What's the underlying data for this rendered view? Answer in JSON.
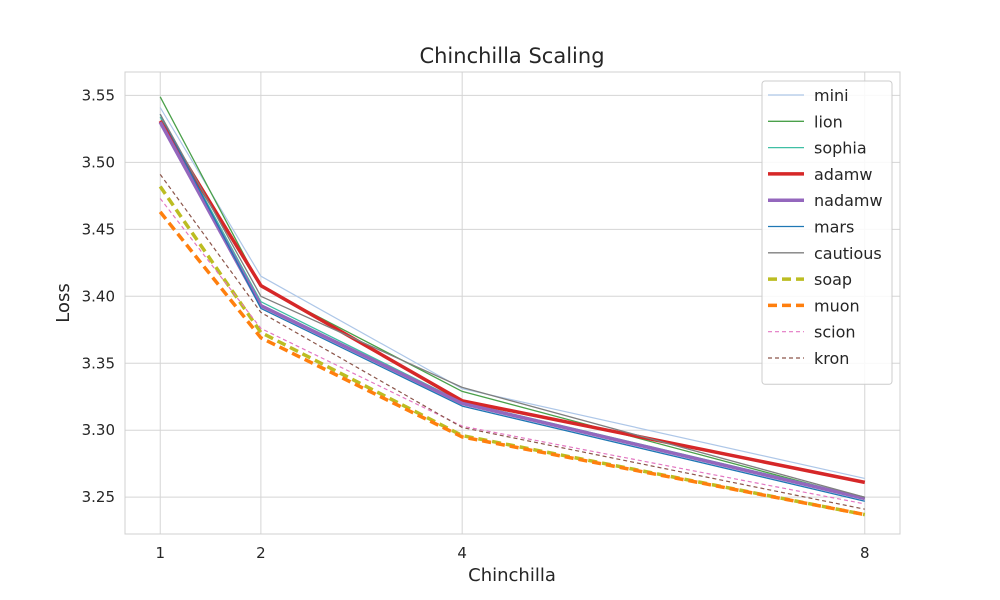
{
  "chart_data": {
    "type": "line",
    "title": "Chinchilla Scaling",
    "xlabel": "Chinchilla",
    "ylabel": "Loss",
    "x": [
      1,
      2,
      4,
      8
    ],
    "xticks": [
      "1",
      "2",
      "4",
      "8"
    ],
    "xlim": [
      0.65,
      8.35
    ],
    "ylim": [
      3.2225,
      3.5675
    ],
    "yticks": [
      "3.25",
      "3.30",
      "3.35",
      "3.40",
      "3.45",
      "3.50",
      "3.55"
    ],
    "grid": true,
    "legend_position": "top-right",
    "series": [
      {
        "name": "mini",
        "values": [
          3.541,
          3.415,
          3.331,
          3.264
        ],
        "color": "#aec7e8",
        "width": 1.2,
        "dash": ""
      },
      {
        "name": "lion",
        "values": [
          3.549,
          3.407,
          3.329,
          3.249
        ],
        "color": "#4aa04a",
        "width": 1.3,
        "dash": ""
      },
      {
        "name": "sophia",
        "values": [
          3.534,
          3.396,
          3.321,
          3.25
        ],
        "color": "#3fbfa4",
        "width": 1.3,
        "dash": ""
      },
      {
        "name": "adamw",
        "values": [
          3.531,
          3.408,
          3.322,
          3.261
        ],
        "color": "#d62728",
        "width": 3.5,
        "dash": ""
      },
      {
        "name": "nadamw",
        "values": [
          3.53,
          3.393,
          3.32,
          3.249
        ],
        "color": "#9467bd",
        "width": 3.5,
        "dash": ""
      },
      {
        "name": "mars",
        "values": [
          3.536,
          3.391,
          3.318,
          3.247
        ],
        "color": "#1f77b4",
        "width": 1.3,
        "dash": ""
      },
      {
        "name": "cautious",
        "values": [
          3.536,
          3.4,
          3.332,
          3.25
        ],
        "color": "#7f7f7f",
        "width": 1.3,
        "dash": ""
      },
      {
        "name": "soap",
        "values": [
          3.482,
          3.373,
          3.296,
          3.237
        ],
        "color": "#bcbd22",
        "width": 3.5,
        "dash": "9,5"
      },
      {
        "name": "muon",
        "values": [
          3.463,
          3.369,
          3.295,
          3.237
        ],
        "color": "#ff7f0e",
        "width": 3.5,
        "dash": "9,5"
      },
      {
        "name": "scion",
        "values": [
          3.473,
          3.376,
          3.303,
          3.245
        ],
        "color": "#e377c2",
        "width": 1.2,
        "dash": "4,3"
      },
      {
        "name": "kron",
        "values": [
          3.491,
          3.388,
          3.302,
          3.241
        ],
        "color": "#8c564b",
        "width": 1.2,
        "dash": "4,3"
      }
    ]
  }
}
